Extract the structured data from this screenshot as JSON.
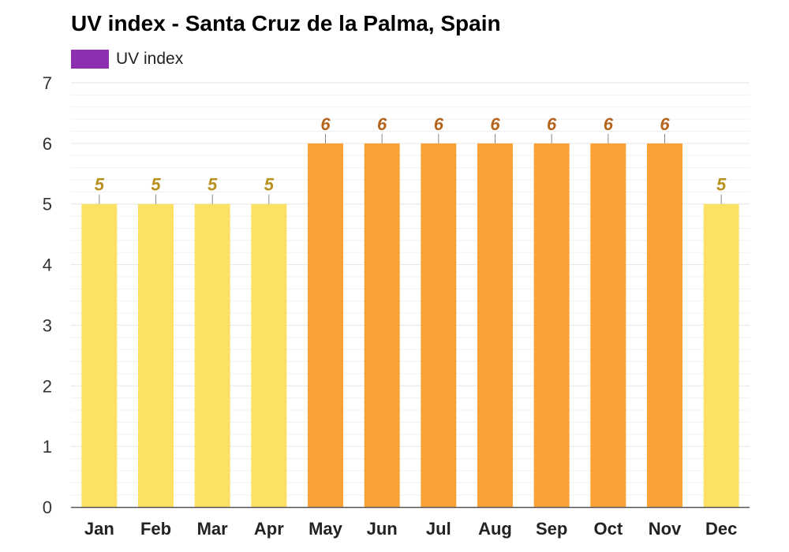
{
  "chart_data": {
    "type": "bar",
    "title": "UV index - Santa Cruz de la Palma, Spain",
    "xlabel": "",
    "ylabel": "",
    "categories": [
      "Jan",
      "Feb",
      "Mar",
      "Apr",
      "May",
      "Jun",
      "Jul",
      "Aug",
      "Sep",
      "Oct",
      "Nov",
      "Dec"
    ],
    "series": [
      {
        "name": "UV index",
        "values": [
          5,
          5,
          5,
          5,
          6,
          6,
          6,
          6,
          6,
          6,
          6,
          5
        ],
        "data_labels": [
          "5",
          "5",
          "5",
          "5",
          "6",
          "6",
          "6",
          "6",
          "6",
          "6",
          "6",
          "5"
        ]
      }
    ],
    "ylim": [
      0,
      7
    ],
    "yticks": [
      "0",
      "1",
      "2",
      "3",
      "4",
      "5",
      "6",
      "7"
    ],
    "grid": true,
    "legend_position": "top-left",
    "colors": {
      "legend_swatch": "#8e2fb0",
      "bar_level_5": "#fce165",
      "bar_level_6": "#fca136",
      "label_level_5": "#b8911e",
      "label_level_6": "#b5651d",
      "gridline": "#e6e6e6",
      "axis": "#555555"
    }
  }
}
